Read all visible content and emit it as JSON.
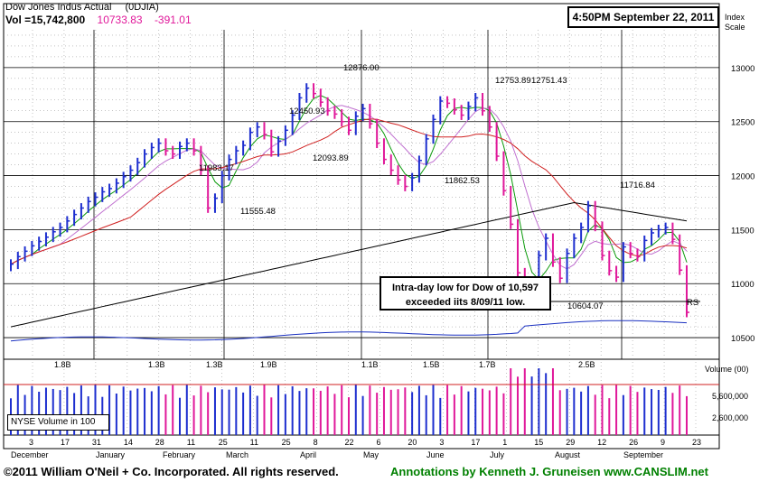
{
  "header": {
    "title": "Dow Jones Indus Actual",
    "symbol": "(0DJIA)",
    "volume": "Vol =15,742,800",
    "price": "10733.83",
    "change": "-391.01",
    "timestamp": "4:50PM September 22, 2011",
    "index_scale_label_1": "Index",
    "index_scale_label_2": "Scale"
  },
  "callout": {
    "line1": "Intra-day low for Dow of 10,597",
    "line2": "exceeded iits 8/09/11 low."
  },
  "volume_panel": {
    "legend": "NYSE Volume in 100",
    "axis_title": "Volume (00)",
    "ticks": [
      "5,600,000",
      "2,600,000"
    ]
  },
  "footer": {
    "copyright": "©2011 William O'Neil + Co. Incorporated. All rights reserved.",
    "annotations": "Annotations by Kenneth J. Gruneisen   www.CANSLIM.net"
  },
  "colors": {
    "up": "#1e2fcf",
    "down": "#e0189a",
    "ma10": "#0a9a0a",
    "ma21": "#c070d0",
    "ma50": "#d02020",
    "ma200": "#000000",
    "rs": "#1a30c0"
  },
  "chart_data": {
    "type": "line",
    "title": "Dow Jones Indus Actual",
    "price_axis_ticks": [
      10500,
      11000,
      11500,
      12000,
      12500,
      13000
    ],
    "ylim": [
      10300,
      13350
    ],
    "date_ticks": [
      "3",
      "17",
      "31",
      "14",
      "28",
      "11",
      "25",
      "11",
      "25",
      "8",
      "22",
      "6",
      "20",
      "3",
      "17",
      "1",
      "15",
      "29",
      "12",
      "26",
      "9",
      "23"
    ],
    "month_labels": [
      "December",
      "January",
      "February",
      "March",
      "April",
      "May",
      "June",
      "July",
      "August",
      "September"
    ],
    "annotations": [
      {
        "text": "12876.00",
        "value": 12876.0
      },
      {
        "text": "12450.93",
        "value": 12450.93
      },
      {
        "text": "12753.89",
        "value": 12753.89
      },
      {
        "text": "12751.43",
        "value": 12751.43
      },
      {
        "text": "11983.17",
        "value": 11983.17
      },
      {
        "text": "12093.89",
        "value": 12093.89
      },
      {
        "text": "11862.53",
        "value": 11862.53
      },
      {
        "text": "11555.48",
        "value": 11555.48
      },
      {
        "text": "11716.84",
        "value": 11716.84
      },
      {
        "text": "10604.07",
        "value": 10604.07
      },
      {
        "text": "RS",
        "value": null
      }
    ],
    "volume_annotations": [
      "1.8B",
      "1.3B",
      "1.3B",
      "1.9B",
      "1.1B",
      "1.5B",
      "1.7B",
      "2.5B"
    ],
    "series": [
      {
        "name": "Dow Jones Indus Actual",
        "values": [
          11180,
          11250,
          11300,
          11350,
          11390,
          11430,
          11480,
          11520,
          11580,
          11640,
          11700,
          11760,
          11800,
          11850,
          11880,
          11930,
          11990,
          12050,
          12120,
          12200,
          12260,
          12300,
          12230,
          12200,
          12270,
          12300,
          12230,
          12050,
          11700,
          11790,
          12000,
          12150,
          12230,
          12280,
          12400,
          12450,
          12380,
          12220,
          12320,
          12420,
          12560,
          12720,
          12810,
          12760,
          12680,
          12600,
          12570,
          12500,
          12420,
          12550,
          12620,
          12480,
          12300,
          12150,
          12050,
          11960,
          11900,
          11980,
          12140,
          12340,
          12520,
          12690,
          12670,
          12610,
          12560,
          12640,
          12720,
          12600,
          12450,
          12180,
          11860,
          11550,
          11100,
          10800,
          10980,
          11260,
          11420,
          11200,
          11050,
          11280,
          11420,
          11520,
          11720,
          11530,
          11260,
          11120,
          11060,
          11340,
          11280,
          11250,
          11400,
          11470,
          11500,
          11520,
          11410,
          11125,
          10734
        ]
      }
    ]
  }
}
